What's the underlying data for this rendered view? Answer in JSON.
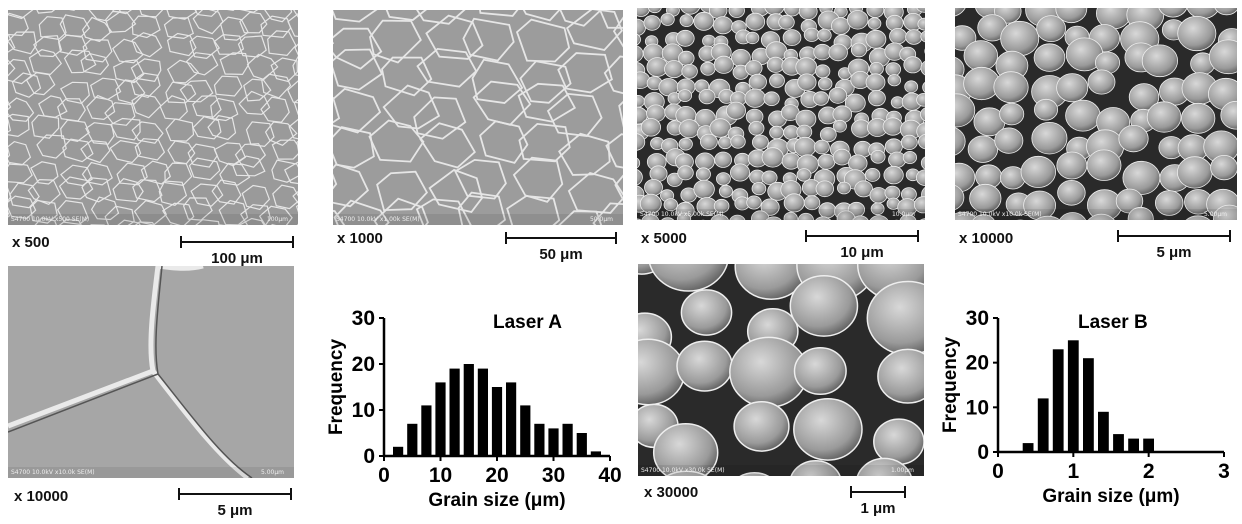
{
  "panels": [
    {
      "id": "a",
      "magnification": "x 500",
      "scale": "100 μm",
      "footer": "S4700 10.0kV x500 SE(M)",
      "footer_scale": "100μm",
      "grain": "fine",
      "shade": "#9a9a9a"
    },
    {
      "id": "b",
      "magnification": "x 1000",
      "scale": "50 μm",
      "footer": "S4700 10.0kV x1.00k SE(M)",
      "footer_scale": "50.0μm",
      "grain": "medium",
      "shade": "#9c9c9c"
    },
    {
      "id": "c",
      "magnification": "x 5000",
      "scale": "10 μm",
      "footer": "S4700 10.0kV x5.00k SE(M)",
      "footer_scale": "10.0μm",
      "grain": "bubbles-small",
      "shade": "#6e6e6e"
    },
    {
      "id": "d",
      "magnification": "x 10000",
      "scale": "5 μm",
      "footer": "S4700 10.0kV x10.0k SE(M)",
      "footer_scale": "5.00μm",
      "grain": "bubbles-medium",
      "shade": "#5a5a5a"
    },
    {
      "id": "e",
      "magnification": "x 10000",
      "scale": "5 μm",
      "footer": "S4700 10.0kV x10.0k SE(M)",
      "footer_scale": "5.00μm",
      "grain": "boundary",
      "shade": "#a6a6a6"
    },
    {
      "id": "g",
      "magnification": "x 30000",
      "scale": "1 μm",
      "footer": "S4700 10.0kV x30.0k SE(M)",
      "footer_scale": "1.00μm",
      "grain": "bubbles-large",
      "shade": "#6a6a6a"
    }
  ],
  "chart_data": [
    {
      "type": "bar",
      "title": "Laser A",
      "xlabel": "Grain size (μm)",
      "ylabel": "Frequency",
      "x": [
        2.5,
        5,
        7.5,
        10,
        12.5,
        15,
        17.5,
        20,
        22.5,
        25,
        27.5,
        30,
        32.5,
        35,
        37.5
      ],
      "values": [
        2,
        7,
        11,
        16,
        19,
        20,
        19,
        15,
        16,
        11,
        7,
        6,
        7,
        5,
        1
      ],
      "xlim": [
        0,
        40
      ],
      "ylim": [
        0,
        30
      ],
      "xticks": [
        "0",
        "10",
        "20",
        "30",
        "40"
      ],
      "yticks": [
        "0",
        "10",
        "20",
        "30"
      ],
      "grid": false,
      "bar_color": "#000000"
    },
    {
      "type": "bar",
      "title": "Laser B",
      "xlabel": "Grain size (μm)",
      "ylabel": "Frequency",
      "x": [
        0.4,
        0.6,
        0.8,
        1.0,
        1.2,
        1.4,
        1.6,
        1.8,
        2.0,
        2.2
      ],
      "values": [
        2,
        12,
        23,
        25,
        21,
        9,
        4,
        3,
        3,
        0
      ],
      "xlim": [
        0,
        3
      ],
      "ylim": [
        0,
        30
      ],
      "xticks": [
        "0",
        "1",
        "2",
        "3"
      ],
      "yticks": [
        "0",
        "10",
        "20",
        "30"
      ],
      "grid": false,
      "bar_color": "#000000"
    }
  ]
}
